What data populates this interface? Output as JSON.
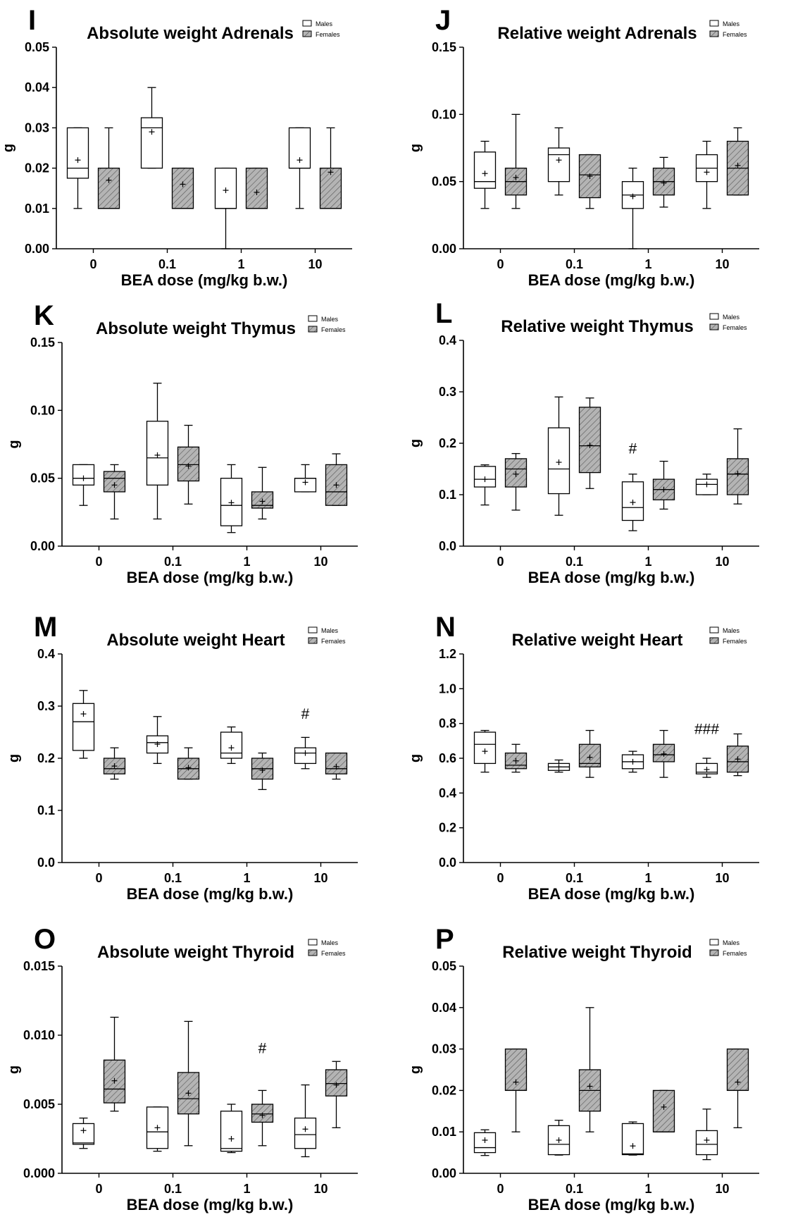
{
  "colors": {
    "males_fill": "#ffffff",
    "females_fill": "#b4b4b4",
    "stroke": "#000000"
  },
  "legend": {
    "males": "Males",
    "females": "Females"
  },
  "chart_data": [
    {
      "panel": "I",
      "title": "Absolute weight Adrenals",
      "type": "box",
      "xlabel": "BEA dose (mg/kg b.w.)",
      "ylabel": "g",
      "categories": [
        "0",
        "0.1",
        "1",
        "10"
      ],
      "yticks": [
        "0.00",
        "0.01",
        "0.02",
        "0.03",
        "0.04",
        "0.05"
      ],
      "ylim": [
        0,
        0.05
      ],
      "series": [
        {
          "name": "Males",
          "boxes": [
            {
              "min": 0.01,
              "q1": 0.0175,
              "median": 0.02,
              "q3": 0.03,
              "max": 0.03,
              "mean": 0.022
            },
            {
              "min": 0.02,
              "q1": 0.02,
              "median": 0.03,
              "q3": 0.0325,
              "max": 0.04,
              "mean": 0.029
            },
            {
              "min": 0.0,
              "q1": 0.01,
              "median": 0.01,
              "q3": 0.02,
              "max": 0.02,
              "mean": 0.0145
            },
            {
              "min": 0.01,
              "q1": 0.02,
              "median": 0.02,
              "q3": 0.03,
              "max": 0.03,
              "mean": 0.022
            }
          ]
        },
        {
          "name": "Females",
          "boxes": [
            {
              "min": 0.01,
              "q1": 0.01,
              "median": 0.01,
              "q3": 0.02,
              "max": 0.03,
              "mean": 0.017
            },
            {
              "min": 0.01,
              "q1": 0.01,
              "median": 0.01,
              "q3": 0.02,
              "max": 0.02,
              "mean": 0.016
            },
            {
              "min": 0.01,
              "q1": 0.01,
              "median": 0.01,
              "q3": 0.02,
              "max": 0.02,
              "mean": 0.014
            },
            {
              "min": 0.01,
              "q1": 0.01,
              "median": 0.01,
              "q3": 0.02,
              "max": 0.03,
              "mean": 0.019
            }
          ]
        }
      ],
      "annotations": []
    },
    {
      "panel": "J",
      "title": "Relative weight Adrenals",
      "type": "box",
      "xlabel": "BEA dose (mg/kg b.w.)",
      "ylabel": "g",
      "categories": [
        "0",
        "0.1",
        "1",
        "10"
      ],
      "yticks": [
        "0.00",
        "0.05",
        "0.10",
        "0.15"
      ],
      "ylim": [
        0,
        0.15
      ],
      "series": [
        {
          "name": "Males",
          "boxes": [
            {
              "min": 0.03,
              "q1": 0.045,
              "median": 0.05,
              "q3": 0.072,
              "max": 0.08,
              "mean": 0.056
            },
            {
              "min": 0.04,
              "q1": 0.05,
              "median": 0.07,
              "q3": 0.075,
              "max": 0.09,
              "mean": 0.066
            },
            {
              "min": 0.0,
              "q1": 0.03,
              "median": 0.04,
              "q3": 0.05,
              "max": 0.06,
              "mean": 0.039
            },
            {
              "min": 0.03,
              "q1": 0.05,
              "median": 0.06,
              "q3": 0.07,
              "max": 0.08,
              "mean": 0.057
            }
          ]
        },
        {
          "name": "Females",
          "boxes": [
            {
              "min": 0.03,
              "q1": 0.04,
              "median": 0.05,
              "q3": 0.06,
              "max": 0.1,
              "mean": 0.053
            },
            {
              "min": 0.03,
              "q1": 0.038,
              "median": 0.055,
              "q3": 0.07,
              "max": 0.07,
              "mean": 0.054
            },
            {
              "min": 0.031,
              "q1": 0.04,
              "median": 0.05,
              "q3": 0.06,
              "max": 0.068,
              "mean": 0.049
            },
            {
              "min": 0.04,
              "q1": 0.04,
              "median": 0.06,
              "q3": 0.08,
              "max": 0.09,
              "mean": 0.062
            }
          ]
        }
      ],
      "annotations": []
    },
    {
      "panel": "K",
      "title": "Absolute weight Thymus",
      "type": "box",
      "xlabel": "BEA dose (mg/kg b.w.)",
      "ylabel": "g",
      "categories": [
        "0",
        "0.1",
        "1",
        "10"
      ],
      "yticks": [
        "0.00",
        "0.05",
        "0.10",
        "0.15"
      ],
      "ylim": [
        0,
        0.15
      ],
      "series": [
        {
          "name": "Males",
          "boxes": [
            {
              "min": 0.03,
              "q1": 0.045,
              "median": 0.05,
              "q3": 0.06,
              "max": 0.06,
              "mean": 0.05
            },
            {
              "min": 0.02,
              "q1": 0.045,
              "median": 0.065,
              "q3": 0.092,
              "max": 0.12,
              "mean": 0.067
            },
            {
              "min": 0.01,
              "q1": 0.015,
              "median": 0.03,
              "q3": 0.05,
              "max": 0.06,
              "mean": 0.032
            },
            {
              "min": 0.04,
              "q1": 0.04,
              "median": 0.05,
              "q3": 0.05,
              "max": 0.06,
              "mean": 0.047
            }
          ]
        },
        {
          "name": "Females",
          "boxes": [
            {
              "min": 0.02,
              "q1": 0.04,
              "median": 0.05,
              "q3": 0.055,
              "max": 0.06,
              "mean": 0.045
            },
            {
              "min": 0.031,
              "q1": 0.048,
              "median": 0.06,
              "q3": 0.073,
              "max": 0.089,
              "mean": 0.059
            },
            {
              "min": 0.02,
              "q1": 0.028,
              "median": 0.03,
              "q3": 0.04,
              "max": 0.058,
              "mean": 0.033
            },
            {
              "min": 0.03,
              "q1": 0.03,
              "median": 0.04,
              "q3": 0.06,
              "max": 0.068,
              "mean": 0.045
            }
          ]
        }
      ],
      "annotations": []
    },
    {
      "panel": "L",
      "title": "Relative weight Thymus",
      "type": "box",
      "xlabel": "BEA dose (mg/kg b.w.)",
      "ylabel": "g",
      "categories": [
        "0",
        "0.1",
        "1",
        "10"
      ],
      "yticks": [
        "0.0",
        "0.1",
        "0.2",
        "0.3",
        "0.4"
      ],
      "ylim": [
        0,
        0.4
      ],
      "series": [
        {
          "name": "Males",
          "boxes": [
            {
              "min": 0.08,
              "q1": 0.115,
              "median": 0.13,
              "q3": 0.155,
              "max": 0.158,
              "mean": 0.13
            },
            {
              "min": 0.06,
              "q1": 0.102,
              "median": 0.15,
              "q3": 0.23,
              "max": 0.29,
              "mean": 0.163
            },
            {
              "min": 0.03,
              "q1": 0.05,
              "median": 0.075,
              "q3": 0.125,
              "max": 0.14,
              "mean": 0.085
            },
            {
              "min": 0.1,
              "q1": 0.1,
              "median": 0.12,
              "q3": 0.13,
              "max": 0.14,
              "mean": 0.12
            }
          ]
        },
        {
          "name": "Females",
          "boxes": [
            {
              "min": 0.07,
              "q1": 0.115,
              "median": 0.15,
              "q3": 0.17,
              "max": 0.18,
              "mean": 0.14
            },
            {
              "min": 0.112,
              "q1": 0.143,
              "median": 0.195,
              "q3": 0.27,
              "max": 0.288,
              "mean": 0.196
            },
            {
              "min": 0.072,
              "q1": 0.09,
              "median": 0.11,
              "q3": 0.13,
              "max": 0.165,
              "mean": 0.11
            },
            {
              "min": 0.082,
              "q1": 0.1,
              "median": 0.14,
              "q3": 0.17,
              "max": 0.228,
              "mean": 0.141
            }
          ]
        }
      ],
      "annotations": [
        {
          "text": "#",
          "category": "1",
          "series": "Males",
          "y": 0.18
        }
      ]
    },
    {
      "panel": "M",
      "title": "Absolute weight Heart",
      "type": "box",
      "xlabel": "BEA dose (mg/kg b.w.)",
      "ylabel": "g",
      "categories": [
        "0",
        "0.1",
        "1",
        "10"
      ],
      "yticks": [
        "0.0",
        "0.1",
        "0.2",
        "0.3",
        "0.4"
      ],
      "ylim": [
        0,
        0.4
      ],
      "series": [
        {
          "name": "Males",
          "boxes": [
            {
              "min": 0.2,
              "q1": 0.215,
              "median": 0.27,
              "q3": 0.305,
              "max": 0.33,
              "mean": 0.285
            },
            {
              "min": 0.19,
              "q1": 0.21,
              "median": 0.23,
              "q3": 0.243,
              "max": 0.28,
              "mean": 0.227
            },
            {
              "min": 0.19,
              "q1": 0.2,
              "median": 0.21,
              "q3": 0.25,
              "max": 0.26,
              "mean": 0.22
            },
            {
              "min": 0.18,
              "q1": 0.19,
              "median": 0.21,
              "q3": 0.22,
              "max": 0.24,
              "mean": 0.21
            }
          ]
        },
        {
          "name": "Females",
          "boxes": [
            {
              "min": 0.16,
              "q1": 0.17,
              "median": 0.18,
              "q3": 0.2,
              "max": 0.22,
              "mean": 0.185
            },
            {
              "min": 0.16,
              "q1": 0.16,
              "median": 0.18,
              "q3": 0.2,
              "max": 0.22,
              "mean": 0.182
            },
            {
              "min": 0.14,
              "q1": 0.16,
              "median": 0.18,
              "q3": 0.2,
              "max": 0.21,
              "mean": 0.177
            },
            {
              "min": 0.16,
              "q1": 0.17,
              "median": 0.18,
              "q3": 0.21,
              "max": 0.21,
              "mean": 0.184
            }
          ]
        }
      ],
      "annotations": [
        {
          "text": "#",
          "category": "10",
          "series": "Males",
          "y": 0.276
        }
      ]
    },
    {
      "panel": "N",
      "title": "Relative weight Heart",
      "type": "box",
      "xlabel": "BEA dose (mg/kg b.w.)",
      "ylabel": "g",
      "categories": [
        "0",
        "0.1",
        "1",
        "10"
      ],
      "yticks": [
        "0.0",
        "0.2",
        "0.4",
        "0.6",
        "0.8",
        "1.0",
        "1.2"
      ],
      "ylim": [
        0,
        1.2
      ],
      "series": [
        {
          "name": "Males",
          "boxes": [
            {
              "min": 0.52,
              "q1": 0.57,
              "median": 0.68,
              "q3": 0.75,
              "max": 0.76,
              "mean": 0.64
            },
            {
              "min": 0.52,
              "q1": 0.53,
              "median": 0.55,
              "q3": 0.57,
              "max": 0.59,
              "mean": 0.55
            },
            {
              "min": 0.52,
              "q1": 0.54,
              "median": 0.58,
              "q3": 0.62,
              "max": 0.64,
              "mean": 0.58
            },
            {
              "min": 0.49,
              "q1": 0.51,
              "median": 0.52,
              "q3": 0.57,
              "max": 0.6,
              "mean": 0.535
            }
          ]
        },
        {
          "name": "Females",
          "boxes": [
            {
              "min": 0.52,
              "q1": 0.54,
              "median": 0.56,
              "q3": 0.63,
              "max": 0.68,
              "mean": 0.585
            },
            {
              "min": 0.49,
              "q1": 0.55,
              "median": 0.57,
              "q3": 0.68,
              "max": 0.76,
              "mean": 0.605
            },
            {
              "min": 0.49,
              "q1": 0.58,
              "median": 0.62,
              "q3": 0.68,
              "max": 0.76,
              "mean": 0.625
            },
            {
              "min": 0.5,
              "q1": 0.52,
              "median": 0.58,
              "q3": 0.67,
              "max": 0.74,
              "mean": 0.595
            }
          ]
        }
      ],
      "annotations": [
        {
          "text": "###",
          "category": "10",
          "series": "Males",
          "y": 0.74
        }
      ]
    },
    {
      "panel": "O",
      "title": "Absolute weight Thyroid",
      "type": "box",
      "xlabel": "BEA dose (mg/kg b.w.)",
      "ylabel": "g",
      "categories": [
        "0",
        "0.1",
        "1",
        "10"
      ],
      "yticks": [
        "0.000",
        "0.005",
        "0.010",
        "0.015"
      ],
      "ylim": [
        0,
        0.015
      ],
      "series": [
        {
          "name": "Males",
          "boxes": [
            {
              "min": 0.0018,
              "q1": 0.0021,
              "median": 0.0022,
              "q3": 0.0036,
              "max": 0.004,
              "mean": 0.0031
            },
            {
              "min": 0.0016,
              "q1": 0.0018,
              "median": 0.003,
              "q3": 0.0048,
              "max": 0.0048,
              "mean": 0.0033
            },
            {
              "min": 0.0015,
              "q1": 0.0016,
              "median": 0.0018,
              "q3": 0.0045,
              "max": 0.005,
              "mean": 0.0025
            },
            {
              "min": 0.0012,
              "q1": 0.0018,
              "median": 0.0028,
              "q3": 0.004,
              "max": 0.0064,
              "mean": 0.0032
            }
          ]
        },
        {
          "name": "Females",
          "boxes": [
            {
              "min": 0.0045,
              "q1": 0.0051,
              "median": 0.0061,
              "q3": 0.0082,
              "max": 0.0113,
              "mean": 0.0067
            },
            {
              "min": 0.002,
              "q1": 0.0043,
              "median": 0.0054,
              "q3": 0.0073,
              "max": 0.011,
              "mean": 0.0058
            },
            {
              "min": 0.002,
              "q1": 0.0037,
              "median": 0.0043,
              "q3": 0.005,
              "max": 0.006,
              "mean": 0.0042
            },
            {
              "min": 0.0033,
              "q1": 0.0056,
              "median": 0.0065,
              "q3": 0.0075,
              "max": 0.0081,
              "mean": 0.0064
            }
          ]
        }
      ],
      "annotations": [
        {
          "text": "#",
          "category": "1",
          "series": "Females",
          "y": 0.0087
        }
      ]
    },
    {
      "panel": "P",
      "title": "Relative weight Thyroid",
      "type": "box",
      "xlabel": "BEA dose (mg/kg b.w.)",
      "ylabel": "g",
      "categories": [
        "0",
        "0.1",
        "1",
        "10"
      ],
      "yticks": [
        "0.00",
        "0.01",
        "0.02",
        "0.03",
        "0.04",
        "0.05"
      ],
      "ylim": [
        0,
        0.05
      ],
      "series": [
        {
          "name": "Males",
          "boxes": [
            {
              "min": 0.0043,
              "q1": 0.005,
              "median": 0.0062,
              "q3": 0.0098,
              "max": 0.0105,
              "mean": 0.008
            },
            {
              "min": 0.0044,
              "q1": 0.0045,
              "median": 0.007,
              "q3": 0.0115,
              "max": 0.0128,
              "mean": 0.008
            },
            {
              "min": 0.0044,
              "q1": 0.0045,
              "median": 0.0047,
              "q3": 0.012,
              "max": 0.0124,
              "mean": 0.0066
            },
            {
              "min": 0.0033,
              "q1": 0.0045,
              "median": 0.007,
              "q3": 0.0103,
              "max": 0.0155,
              "mean": 0.008
            }
          ]
        },
        {
          "name": "Females",
          "boxes": [
            {
              "min": 0.01,
              "q1": 0.02,
              "median": 0.02,
              "q3": 0.03,
              "max": 0.03,
              "mean": 0.022
            },
            {
              "min": 0.01,
              "q1": 0.015,
              "median": 0.02,
              "q3": 0.025,
              "max": 0.04,
              "mean": 0.021
            },
            {
              "min": 0.01,
              "q1": 0.01,
              "median": 0.01,
              "q3": 0.02,
              "max": 0.02,
              "mean": 0.016
            },
            {
              "min": 0.011,
              "q1": 0.02,
              "median": 0.02,
              "q3": 0.03,
              "max": 0.03,
              "mean": 0.022
            }
          ]
        }
      ],
      "annotations": []
    }
  ]
}
